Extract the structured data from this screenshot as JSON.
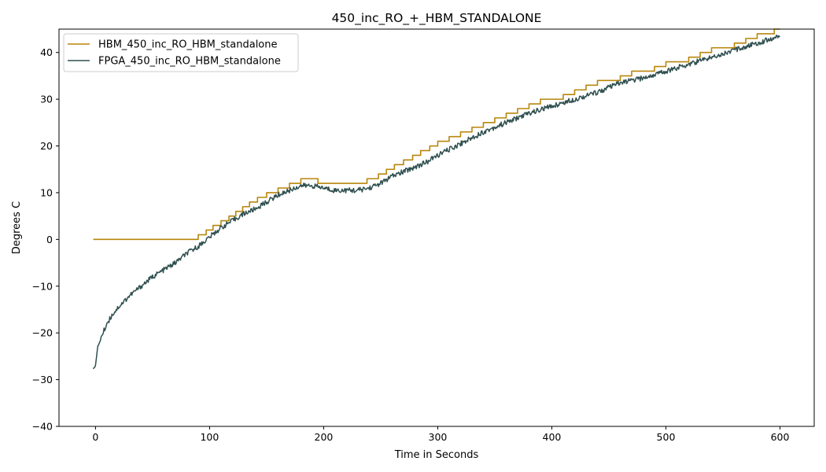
{
  "chart_data": {
    "type": "line",
    "title": "450_inc_RO_+_HBM_STANDALONE",
    "xlabel": "Time in Seconds",
    "ylabel": "Degrees C",
    "xlim": [
      -32,
      630
    ],
    "ylim": [
      -40,
      45
    ],
    "xticks": [
      0,
      100,
      200,
      300,
      400,
      500,
      600
    ],
    "yticks": [
      -40,
      -30,
      -20,
      -10,
      0,
      10,
      20,
      30,
      40
    ],
    "grid": false,
    "legend_position": "top-left",
    "series": [
      {
        "name": "HBM_450_inc_RO_HBM_standalone",
        "color": "#b8860b",
        "style": "step",
        "x": [
          -2,
          90,
          90,
          97,
          97,
          103,
          103,
          110,
          110,
          117,
          117,
          123,
          123,
          129,
          129,
          135,
          135,
          142,
          142,
          150,
          150,
          160,
          160,
          170,
          170,
          180,
          180,
          195,
          195,
          238,
          238,
          248,
          248,
          255,
          255,
          262,
          262,
          270,
          270,
          278,
          278,
          285,
          285,
          293,
          293,
          300,
          300,
          310,
          310,
          320,
          320,
          330,
          330,
          340,
          340,
          350,
          350,
          360,
          360,
          370,
          370,
          380,
          380,
          390,
          390,
          400,
          400,
          410,
          410,
          420,
          420,
          430,
          430,
          440,
          440,
          450,
          450,
          460,
          460,
          470,
          470,
          480,
          480,
          490,
          490,
          500,
          500,
          510,
          510,
          520,
          520,
          530,
          530,
          540,
          540,
          550,
          550,
          560,
          560,
          570,
          570,
          580,
          580,
          590,
          590,
          595,
          595,
          600
        ],
        "y": [
          0,
          0,
          1,
          1,
          2,
          2,
          3,
          3,
          4,
          4,
          5,
          5,
          6,
          6,
          7,
          7,
          8,
          8,
          9,
          9,
          10,
          10,
          11,
          11,
          12,
          12,
          13,
          13,
          12,
          12,
          13,
          13,
          14,
          14,
          15,
          15,
          16,
          16,
          17,
          17,
          18,
          18,
          19,
          19,
          20,
          20,
          21,
          21,
          22,
          22,
          23,
          23,
          24,
          24,
          25,
          25,
          26,
          26,
          27,
          27,
          28,
          28,
          29,
          29,
          30,
          30,
          30,
          30,
          31,
          31,
          32,
          32,
          33,
          33,
          34,
          34,
          34,
          34,
          35,
          35,
          36,
          36,
          36,
          36,
          37,
          37,
          38,
          38,
          38,
          38,
          39,
          39,
          40,
          40,
          41,
          41,
          41,
          41,
          42,
          42,
          43,
          43,
          44,
          44,
          44,
          44,
          45,
          45
        ]
      },
      {
        "name": "FPGA_450_inc_RO_HBM_standalone",
        "color": "#2f4f4f",
        "style": "line",
        "x": [
          -2,
          0,
          2,
          5,
          10,
          15,
          20,
          30,
          40,
          50,
          60,
          70,
          80,
          90,
          100,
          110,
          120,
          130,
          140,
          150,
          160,
          170,
          180,
          190,
          200,
          210,
          220,
          230,
          240,
          250,
          260,
          270,
          280,
          290,
          300,
          320,
          340,
          360,
          380,
          400,
          420,
          440,
          460,
          480,
          500,
          520,
          540,
          560,
          580,
          600
        ],
        "y": [
          -27.5,
          -27,
          -23,
          -21,
          -18,
          -16,
          -14.5,
          -12,
          -10,
          -8,
          -6.5,
          -5,
          -3,
          -1.5,
          0.5,
          2.5,
          4,
          5.5,
          6.5,
          8,
          9.5,
          10.5,
          11.5,
          11.5,
          11,
          10.5,
          10.5,
          10.5,
          11,
          12,
          13.5,
          14.5,
          15.5,
          16.5,
          18,
          20.5,
          23,
          25,
          27,
          28.5,
          30,
          31.5,
          33.5,
          34.5,
          36,
          37.5,
          39,
          40.5,
          42,
          43.5
        ]
      }
    ]
  }
}
